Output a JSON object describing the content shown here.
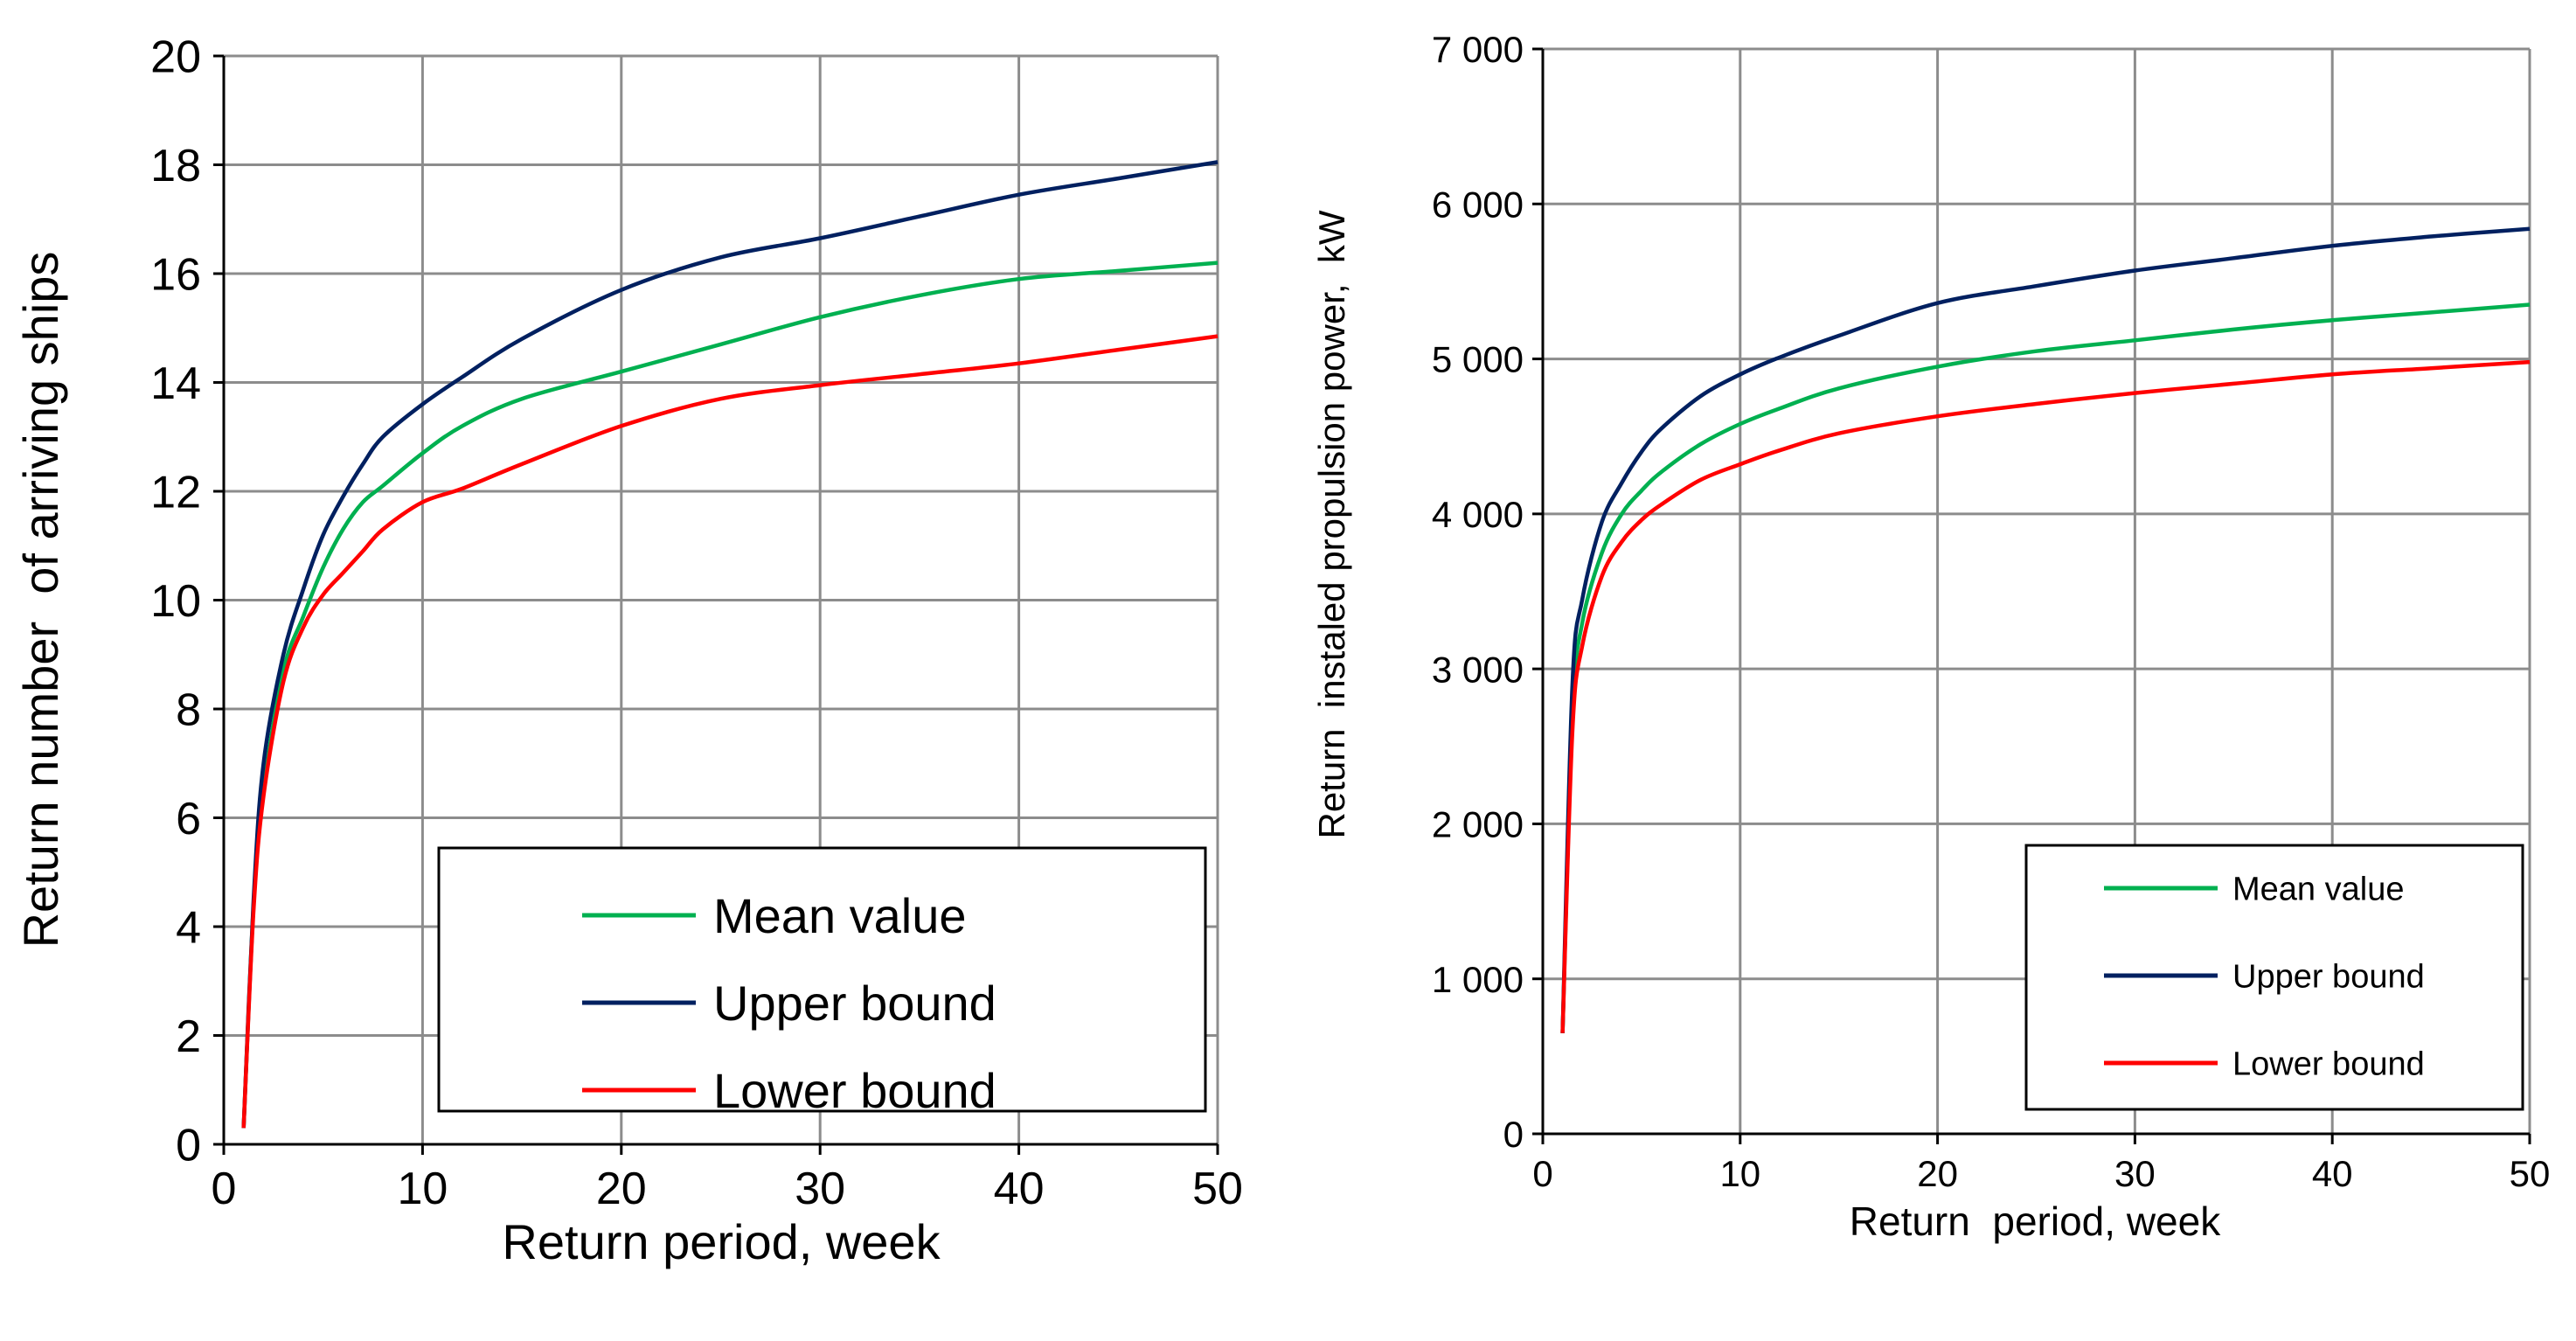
{
  "chart_data": [
    {
      "type": "line",
      "xlabel": "Return period, week",
      "ylabel": "Return number  of arriving ships",
      "xlim": [
        0,
        50
      ],
      "ylim": [
        0,
        20
      ],
      "xticks": [
        "0",
        "10",
        "20",
        "30",
        "40",
        "50"
      ],
      "yticks": [
        "0",
        "2",
        "4",
        "6",
        "8",
        "10",
        "12",
        "14",
        "16",
        "18",
        "20"
      ],
      "grid": true,
      "legend_position": "bottom-right",
      "series": [
        {
          "name": "Mean value",
          "color": "#00b050",
          "x": [
            1,
            1.5,
            2,
            3,
            4,
            5,
            6,
            7,
            8,
            10,
            12,
            15,
            20,
            25,
            30,
            35,
            40,
            45,
            50
          ],
          "y": [
            0.3,
            4.4,
            6.5,
            8.7,
            9.7,
            10.6,
            11.3,
            11.8,
            12.1,
            12.7,
            13.2,
            13.7,
            14.2,
            14.7,
            15.2,
            15.6,
            15.9,
            16.05,
            16.2
          ]
        },
        {
          "name": "Upper bound",
          "color": "#002060",
          "x": [
            1,
            1.5,
            2,
            3,
            4,
            5,
            6,
            7,
            8,
            10,
            12,
            15,
            20,
            25,
            30,
            35,
            40,
            45,
            50
          ],
          "y": [
            0.3,
            4.5,
            7.0,
            9.0,
            10.2,
            11.2,
            11.9,
            12.5,
            13.0,
            13.6,
            14.1,
            14.8,
            15.7,
            16.3,
            16.65,
            17.05,
            17.45,
            17.75,
            18.05
          ]
        },
        {
          "name": "Lower bound",
          "color": "#ff0000",
          "x": [
            1,
            1.5,
            2,
            3,
            4,
            5,
            6,
            7,
            8,
            10,
            12,
            15,
            20,
            25,
            30,
            35,
            40,
            45,
            50
          ],
          "y": [
            0.3,
            4.3,
            6.4,
            8.5,
            9.5,
            10.1,
            10.5,
            10.9,
            11.3,
            11.8,
            12.05,
            12.5,
            13.2,
            13.7,
            13.95,
            14.15,
            14.35,
            14.6,
            14.85
          ]
        }
      ]
    },
    {
      "type": "line",
      "xlabel": "Return  period, week",
      "ylabel": "Return  instaled propulsion power,  kW",
      "xlim": [
        0,
        50
      ],
      "ylim": [
        0,
        7000
      ],
      "xticks": [
        "0",
        "10",
        "20",
        "30",
        "40",
        "50"
      ],
      "yticks": [
        "0",
        "1 000",
        "2 000",
        "3 000",
        "4 000",
        "5 000",
        "6 000",
        "7 000"
      ],
      "grid": true,
      "legend_position": "bottom-right",
      "series": [
        {
          "name": "Mean value",
          "color": "#00b050",
          "x": [
            1,
            1.5,
            2,
            3,
            4,
            5,
            6,
            8,
            10,
            12,
            15,
            20,
            25,
            30,
            35,
            40,
            45,
            50
          ],
          "y": [
            650,
            2700,
            3300,
            3750,
            4000,
            4150,
            4270,
            4450,
            4580,
            4680,
            4810,
            4950,
            5050,
            5120,
            5190,
            5250,
            5300,
            5350
          ]
        },
        {
          "name": "Upper bound",
          "color": "#002060",
          "x": [
            1,
            1.5,
            2,
            3,
            4,
            5,
            6,
            8,
            10,
            12,
            15,
            20,
            25,
            30,
            35,
            40,
            45,
            50
          ],
          "y": [
            650,
            2900,
            3450,
            3950,
            4200,
            4400,
            4550,
            4760,
            4900,
            5010,
            5150,
            5360,
            5470,
            5570,
            5650,
            5730,
            5790,
            5840
          ]
        },
        {
          "name": "Lower bound",
          "color": "#ff0000",
          "x": [
            1,
            1.5,
            2,
            3,
            4,
            5,
            6,
            8,
            10,
            12,
            15,
            20,
            25,
            30,
            35,
            40,
            45,
            50
          ],
          "y": [
            650,
            2600,
            3150,
            3600,
            3820,
            3960,
            4060,
            4220,
            4320,
            4410,
            4520,
            4630,
            4710,
            4780,
            4840,
            4900,
            4940,
            4980
          ]
        }
      ]
    }
  ]
}
